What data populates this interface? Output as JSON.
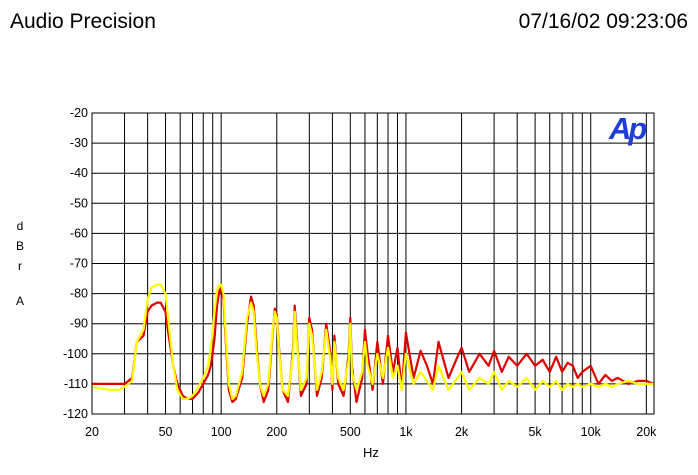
{
  "header": {
    "app_title": "Audio Precision",
    "timestamp": "07/16/02 09:23:06"
  },
  "logo_text": "Ap",
  "chart_data": {
    "type": "line",
    "title": "",
    "xlabel": "Hz",
    "ylabel_chars": [
      "d",
      "B",
      "r",
      "",
      "A"
    ],
    "x_scale": "log",
    "xlim": [
      20,
      22000
    ],
    "ylim": [
      -120,
      -20
    ],
    "grid": true,
    "x_ticks": [
      {
        "value": 20,
        "label": "20"
      },
      {
        "value": 50,
        "label": "50"
      },
      {
        "value": 100,
        "label": "100"
      },
      {
        "value": 200,
        "label": "200"
      },
      {
        "value": 500,
        "label": "500"
      },
      {
        "value": 1000,
        "label": "1k"
      },
      {
        "value": 2000,
        "label": "2k"
      },
      {
        "value": 5000,
        "label": "5k"
      },
      {
        "value": 10000,
        "label": "10k"
      },
      {
        "value": 20000,
        "label": "20k"
      }
    ],
    "y_ticks": [
      -20,
      -30,
      -40,
      -50,
      -60,
      -70,
      -80,
      -90,
      -100,
      -110,
      -120
    ],
    "series": [
      {
        "color": "#e00000",
        "x": [
          20,
          25,
          30,
          33,
          35,
          38,
          40,
          42,
          45,
          47,
          50,
          52,
          55,
          58,
          62,
          66,
          70,
          75,
          80,
          85,
          88,
          92,
          95,
          98,
          100,
          103,
          106,
          110,
          115,
          120,
          130,
          138,
          145,
          150,
          155,
          162,
          170,
          180,
          190,
          195,
          200,
          205,
          215,
          230,
          245,
          250,
          255,
          270,
          290,
          300,
          310,
          330,
          350,
          370,
          390,
          400,
          410,
          430,
          460,
          490,
          500,
          510,
          540,
          580,
          600,
          620,
          660,
          700,
          750,
          800,
          850,
          900,
          950,
          1000,
          1100,
          1200,
          1300,
          1400,
          1500,
          1700,
          1900,
          2000,
          2200,
          2500,
          2800,
          3000,
          3300,
          3600,
          4000,
          4500,
          5000,
          5500,
          6000,
          6500,
          7000,
          7500,
          8000,
          8500,
          9000,
          10000,
          11000,
          12000,
          13000,
          14000,
          16000,
          18000,
          20000,
          22000
        ],
        "y": [
          -110,
          -110,
          -110,
          -108,
          -96,
          -94,
          -86,
          -84,
          -83,
          -83,
          -86,
          -94,
          -104,
          -110,
          -114,
          -115,
          -115,
          -113,
          -110,
          -107,
          -104,
          -95,
          -84,
          -79,
          -78,
          -82,
          -96,
          -112,
          -116,
          -115,
          -108,
          -90,
          -81,
          -84,
          -96,
          -110,
          -116,
          -112,
          -93,
          -85,
          -87,
          -97,
          -112,
          -116,
          -98,
          -84,
          -92,
          -114,
          -110,
          -88,
          -92,
          -114,
          -108,
          -90,
          -100,
          -112,
          -94,
          -110,
          -114,
          -100,
          -88,
          -104,
          -116,
          -108,
          -92,
          -100,
          -112,
          -96,
          -110,
          -94,
          -106,
          -98,
          -112,
          -93,
          -108,
          -99,
          -104,
          -110,
          -96,
          -108,
          -101,
          -98,
          -106,
          -100,
          -104,
          -99,
          -106,
          -101,
          -104,
          -100,
          -104,
          -102,
          -106,
          -101,
          -106,
          -103,
          -104,
          -108,
          -106,
          -104,
          -110,
          -107,
          -109,
          -108,
          -110,
          -109,
          -109,
          -110
        ]
      },
      {
        "color": "#ffff00",
        "x": [
          20,
          25,
          28,
          30,
          33,
          35,
          38,
          40,
          42,
          45,
          47,
          50,
          52,
          55,
          58,
          62,
          66,
          70,
          75,
          80,
          85,
          88,
          92,
          95,
          98,
          100,
          103,
          106,
          110,
          115,
          120,
          130,
          138,
          145,
          150,
          155,
          162,
          170,
          180,
          190,
          195,
          200,
          205,
          215,
          230,
          245,
          250,
          255,
          270,
          290,
          300,
          310,
          330,
          350,
          370,
          390,
          400,
          410,
          430,
          460,
          490,
          500,
          510,
          540,
          580,
          600,
          620,
          660,
          700,
          750,
          800,
          850,
          900,
          950,
          1000,
          1100,
          1200,
          1300,
          1400,
          1500,
          1700,
          1900,
          2000,
          2200,
          2500,
          2800,
          3000,
          3300,
          3600,
          4000,
          4500,
          5000,
          5500,
          6000,
          6500,
          7000,
          7500,
          8000,
          8500,
          9000,
          10000,
          11000,
          12000,
          13000,
          14000,
          16000,
          18000,
          20000,
          22000
        ],
        "y": [
          -111,
          -112,
          -112,
          -111,
          -109,
          -96,
          -92,
          -82,
          -78,
          -77,
          -77,
          -80,
          -90,
          -104,
          -112,
          -115,
          -115,
          -114,
          -111,
          -108,
          -104,
          -98,
          -86,
          -79,
          -77,
          -77,
          -80,
          -94,
          -110,
          -115,
          -114,
          -106,
          -88,
          -83,
          -86,
          -98,
          -110,
          -114,
          -110,
          -92,
          -86,
          -88,
          -98,
          -112,
          -114,
          -100,
          -86,
          -94,
          -112,
          -108,
          -90,
          -94,
          -112,
          -106,
          -92,
          -102,
          -110,
          -96,
          -108,
          -112,
          -102,
          -90,
          -106,
          -112,
          -106,
          -96,
          -104,
          -110,
          -100,
          -108,
          -98,
          -108,
          -104,
          -112,
          -100,
          -110,
          -106,
          -109,
          -112,
          -104,
          -112,
          -108,
          -106,
          -112,
          -108,
          -110,
          -106,
          -112,
          -109,
          -111,
          -108,
          -112,
          -109,
          -111,
          -109,
          -112,
          -110,
          -111,
          -110,
          -111,
          -110,
          -111,
          -110,
          -111,
          -110,
          -109,
          -110,
          -110,
          -110
        ]
      }
    ]
  }
}
